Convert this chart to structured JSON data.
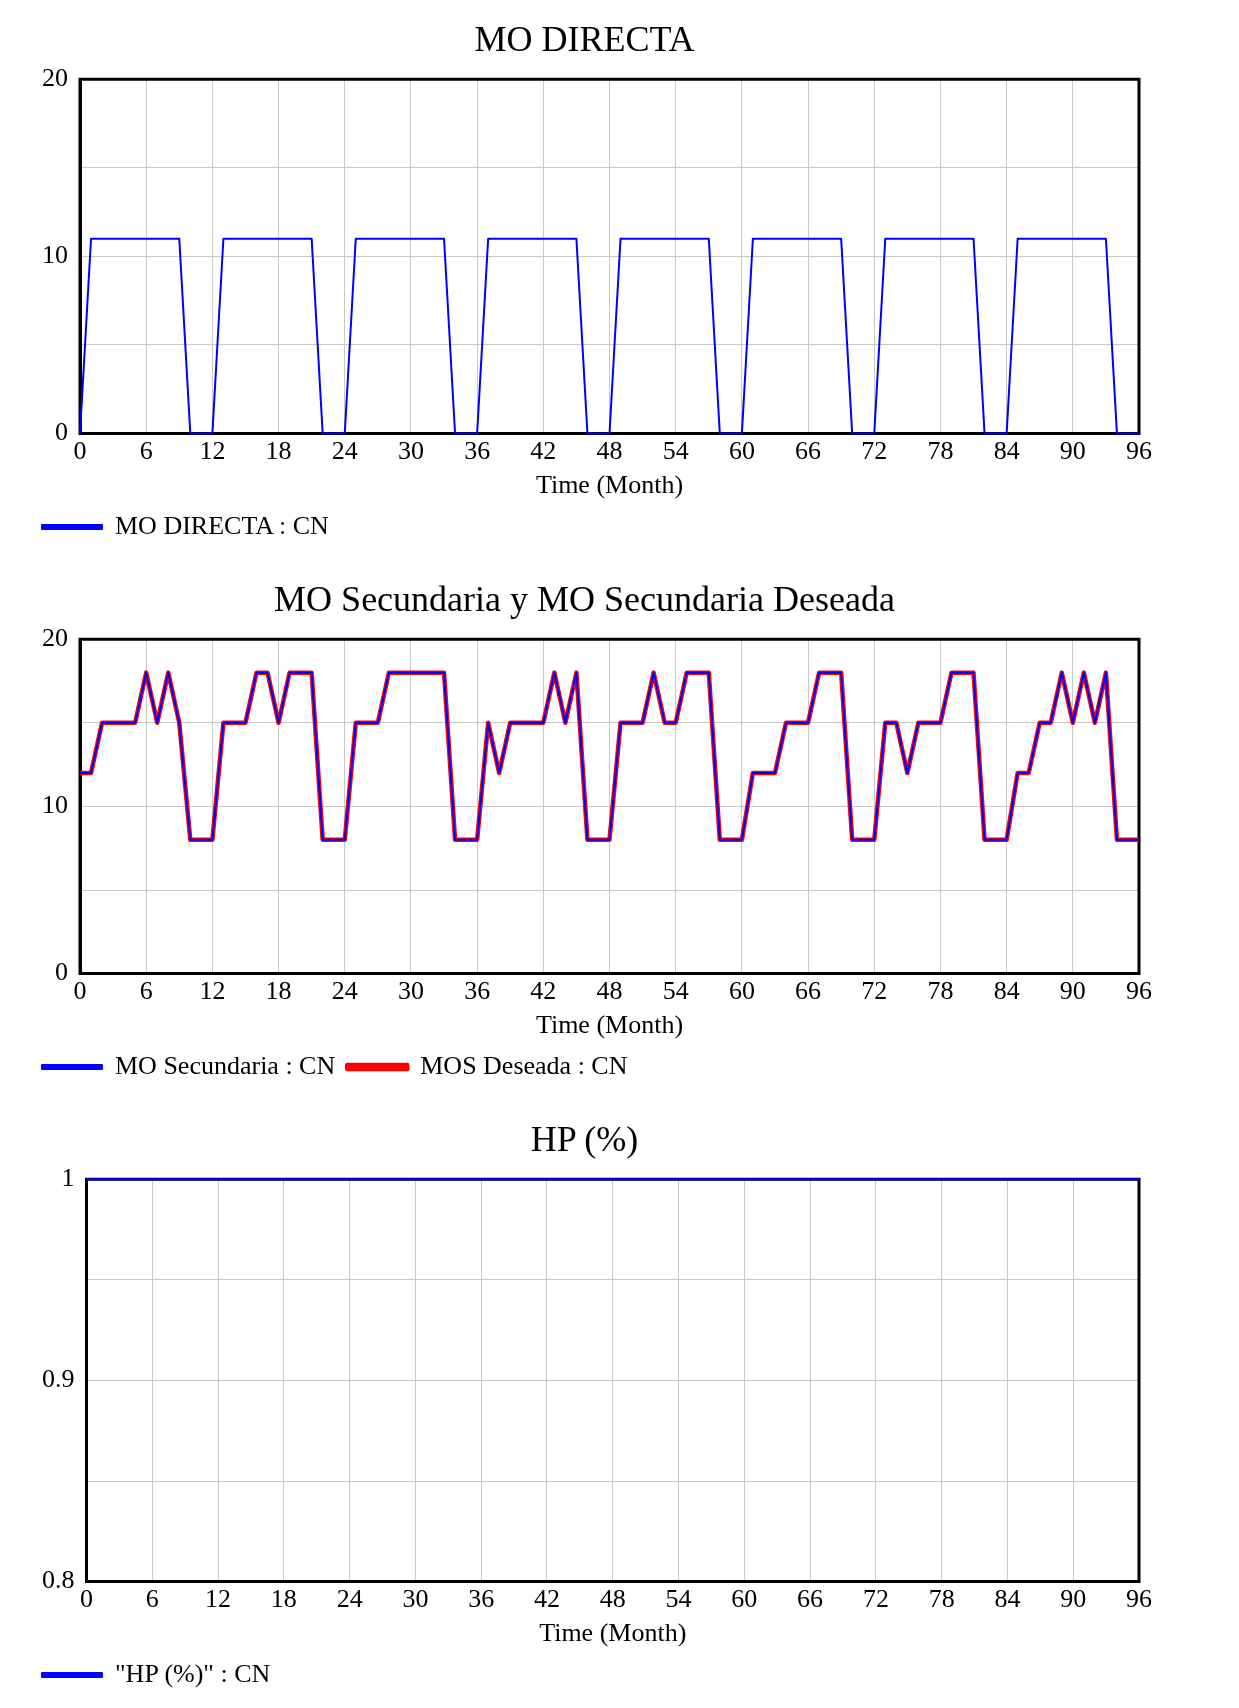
{
  "chart_data": [
    {
      "type": "line",
      "title": "MO DIRECTA",
      "xlabel": "Time (Month)",
      "xlim": [
        0,
        96
      ],
      "xticks": [
        0,
        6,
        12,
        18,
        24,
        30,
        36,
        42,
        48,
        54,
        60,
        66,
        72,
        78,
        84,
        90,
        96
      ],
      "ylim": [
        0,
        20
      ],
      "yticks": [
        0,
        {
          "value": 5,
          "label": null
        },
        10,
        {
          "value": 15,
          "label": null
        },
        20
      ],
      "grid": true,
      "legend": "bottom",
      "series": [
        {
          "name": "MO DIRECTA : CN",
          "color": "#0000ff",
          "x": [
            0,
            1,
            9,
            10,
            12,
            13,
            21,
            22,
            24,
            25,
            33,
            34,
            36,
            37,
            45,
            46,
            48,
            49,
            57,
            58,
            60,
            61,
            69,
            70,
            72,
            73,
            81,
            82,
            84,
            85,
            93,
            94,
            96
          ],
          "values": [
            0,
            11,
            11,
            0,
            0,
            11,
            11,
            0,
            0,
            11,
            11,
            0,
            0,
            11,
            11,
            0,
            0,
            11,
            11,
            0,
            0,
            11,
            11,
            0,
            0,
            11,
            11,
            0,
            0,
            11,
            11,
            0,
            0
          ]
        }
      ]
    },
    {
      "type": "line",
      "title": "MO Secundaria y MO Secundaria Deseada",
      "xlabel": "Time (Month)",
      "xlim": [
        0,
        96
      ],
      "xticks": [
        0,
        6,
        12,
        18,
        24,
        30,
        36,
        42,
        48,
        54,
        60,
        66,
        72,
        78,
        84,
        90,
        96
      ],
      "ylim": [
        0,
        20
      ],
      "yticks": [
        0,
        {
          "value": 5,
          "label": null
        },
        10,
        {
          "value": 15,
          "label": null
        },
        20
      ],
      "grid": true,
      "legend": "bottom",
      "series": [
        {
          "name": "MO Secundaria : CN",
          "color": "#0000ff",
          "x": [
            0,
            1,
            2,
            5,
            6,
            7,
            8,
            9,
            10,
            12,
            13,
            15,
            16,
            17,
            18,
            19,
            21,
            22,
            24,
            25,
            27,
            28,
            33,
            34,
            36,
            37,
            38,
            39,
            42,
            43,
            44,
            45,
            46,
            48,
            49,
            51,
            52,
            53,
            54,
            55,
            57,
            58,
            60,
            61,
            63,
            64,
            66,
            67,
            69,
            70,
            72,
            73,
            74,
            75,
            76,
            78,
            79,
            81,
            82,
            84,
            85,
            86,
            87,
            88,
            89,
            90,
            91,
            92,
            93,
            94,
            96
          ],
          "values": [
            12,
            12,
            15,
            15,
            18,
            15,
            18,
            15,
            8,
            8,
            15,
            15,
            18,
            18,
            15,
            18,
            18,
            8,
            8,
            15,
            15,
            18,
            18,
            8,
            8,
            15,
            12,
            15,
            15,
            18,
            15,
            18,
            8,
            8,
            15,
            15,
            18,
            15,
            15,
            18,
            18,
            8,
            8,
            12,
            12,
            15,
            15,
            18,
            18,
            8,
            8,
            15,
            15,
            12,
            15,
            15,
            18,
            18,
            8,
            8,
            12,
            12,
            15,
            15,
            18,
            15,
            18,
            15,
            18,
            8,
            8
          ]
        },
        {
          "name": "MOS Deseada : CN",
          "color": "#ff0000",
          "x": [
            0,
            1,
            2,
            5,
            6,
            7,
            8,
            9,
            10,
            12,
            13,
            15,
            16,
            17,
            18,
            19,
            21,
            22,
            24,
            25,
            27,
            28,
            33,
            34,
            36,
            37,
            38,
            39,
            42,
            43,
            44,
            45,
            46,
            48,
            49,
            51,
            52,
            53,
            54,
            55,
            57,
            58,
            60,
            61,
            63,
            64,
            66,
            67,
            69,
            70,
            72,
            73,
            74,
            75,
            76,
            78,
            79,
            81,
            82,
            84,
            85,
            86,
            87,
            88,
            89,
            90,
            91,
            92,
            93,
            94,
            96
          ],
          "values": [
            12,
            12,
            15,
            15,
            18,
            15,
            18,
            15,
            8,
            8,
            15,
            15,
            18,
            18,
            15,
            18,
            18,
            8,
            8,
            15,
            15,
            18,
            18,
            8,
            8,
            15,
            12,
            15,
            15,
            18,
            15,
            18,
            8,
            8,
            15,
            15,
            18,
            15,
            15,
            18,
            18,
            8,
            8,
            12,
            12,
            15,
            15,
            18,
            18,
            8,
            8,
            15,
            15,
            12,
            15,
            15,
            18,
            18,
            8,
            8,
            12,
            12,
            15,
            15,
            18,
            15,
            18,
            15,
            18,
            8,
            8
          ]
        }
      ]
    },
    {
      "type": "line",
      "title": "HP (%)",
      "xlabel": "Time (Month)",
      "xlim": [
        0,
        96
      ],
      "xticks": [
        0,
        6,
        12,
        18,
        24,
        30,
        36,
        42,
        48,
        54,
        60,
        66,
        72,
        78,
        84,
        90,
        96
      ],
      "ylim": [
        0.8,
        1
      ],
      "yticks": [
        0.8,
        {
          "value": 0.85,
          "label": null
        },
        0.9,
        {
          "value": 0.95,
          "label": null
        },
        1
      ],
      "grid": true,
      "legend": "bottom",
      "series": [
        {
          "name": "\"HP (%)\" : CN",
          "color": "#0000ff",
          "x": [
            0,
            96
          ],
          "values": [
            1,
            1
          ]
        }
      ]
    }
  ]
}
